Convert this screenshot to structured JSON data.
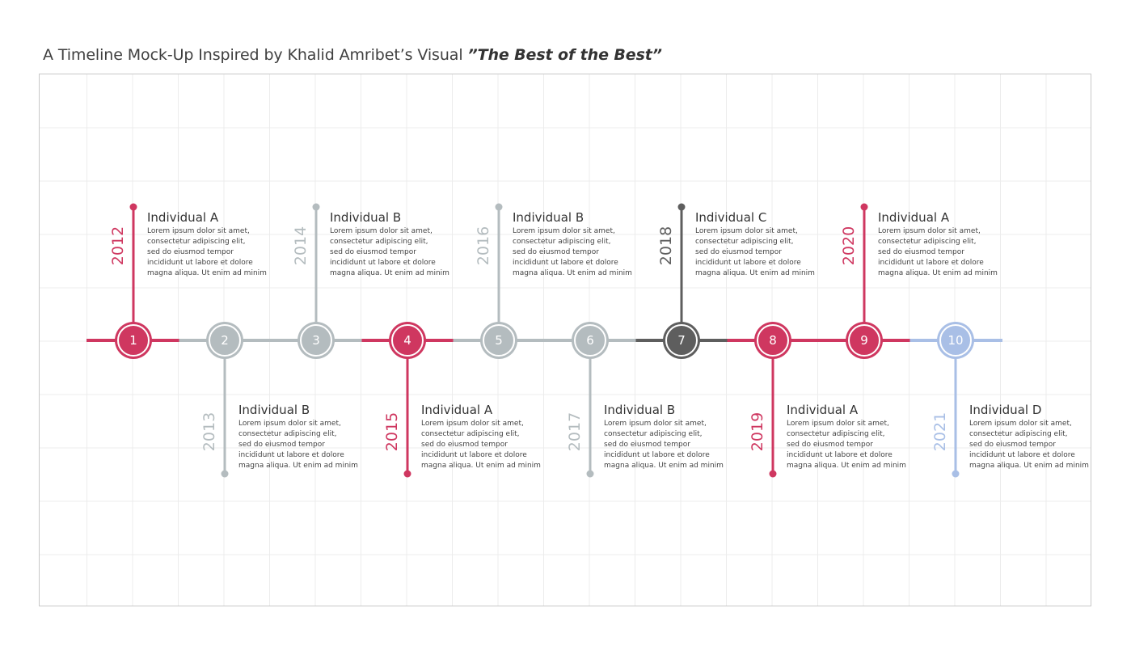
{
  "title": {
    "prefix": "A Timeline Mock-Up Inspired by Khalid Amribet’s Visual ",
    "emphasis": "”The Best of the Best”"
  },
  "colors": {
    "red": "#cf3760",
    "gray": "#b4bcbf",
    "dark": "#5e5e5e",
    "blue": "#a9bfe6",
    "grid": "#ececec"
  },
  "events": [
    {
      "num": "1",
      "year": "2012",
      "name": "Individual A",
      "color": "red",
      "side": "top",
      "desc": [
        "Lorem ipsum dolor sit amet,",
        "consectetur adipiscing elit,",
        "sed do eiusmod tempor",
        "incididunt ut labore et dolore",
        "magna aliqua. Ut enim ad minim"
      ]
    },
    {
      "num": "2",
      "year": "2013",
      "name": "Individual B",
      "color": "gray",
      "side": "bottom",
      "desc": [
        "Lorem ipsum dolor sit amet,",
        "consectetur adipiscing elit,",
        "sed do eiusmod tempor",
        "incididunt ut labore et dolore",
        "magna aliqua. Ut enim ad minim"
      ]
    },
    {
      "num": "3",
      "year": "2014",
      "name": "Individual B",
      "color": "gray",
      "side": "top",
      "desc": [
        "Lorem ipsum dolor sit amet,",
        "consectetur adipiscing elit,",
        "sed do eiusmod tempor",
        "incididunt ut labore et dolore",
        "magna aliqua. Ut enim ad minim"
      ]
    },
    {
      "num": "4",
      "year": "2015",
      "name": "Individual A",
      "color": "red",
      "side": "bottom",
      "desc": [
        "Lorem ipsum dolor sit amet,",
        "consectetur adipiscing elit,",
        "sed do eiusmod tempor",
        "incididunt ut labore et dolore",
        "magna aliqua. Ut enim ad minim"
      ]
    },
    {
      "num": "5",
      "year": "2016",
      "name": "Individual B",
      "color": "gray",
      "side": "top",
      "desc": [
        "Lorem ipsum dolor sit amet,",
        "consectetur adipiscing elit,",
        "sed do eiusmod tempor",
        "incididunt ut labore et dolore",
        "magna aliqua. Ut enim ad minim"
      ]
    },
    {
      "num": "6",
      "year": "2017",
      "name": "Individual B",
      "color": "gray",
      "side": "bottom",
      "desc": [
        "Lorem ipsum dolor sit amet,",
        "consectetur adipiscing elit,",
        "sed do eiusmod tempor",
        "incididunt ut labore et dolore",
        "magna aliqua. Ut enim ad minim"
      ]
    },
    {
      "num": "7",
      "year": "2018",
      "name": "Individual C",
      "color": "dark",
      "side": "top",
      "desc": [
        "Lorem ipsum dolor sit amet,",
        "consectetur adipiscing elit,",
        "sed do eiusmod tempor",
        "incididunt ut labore et dolore",
        "magna aliqua. Ut enim ad minim"
      ]
    },
    {
      "num": "8",
      "year": "2019",
      "name": "Individual A",
      "color": "red",
      "side": "bottom",
      "desc": [
        "Lorem ipsum dolor sit amet,",
        "consectetur adipiscing elit,",
        "sed do eiusmod tempor",
        "incididunt ut labore et dolore",
        "magna aliqua. Ut enim ad minim"
      ]
    },
    {
      "num": "9",
      "year": "2020",
      "name": "Individual A",
      "color": "red",
      "side": "top",
      "desc": [
        "Lorem ipsum dolor sit amet,",
        "consectetur adipiscing elit,",
        "sed do eiusmod tempor",
        "incididunt ut labore et dolore",
        "magna aliqua. Ut enim ad minim"
      ]
    },
    {
      "num": "10",
      "year": "2021",
      "name": "Individual D",
      "color": "blue",
      "side": "bottom",
      "desc": [
        "Lorem ipsum dolor sit amet,",
        "consectetur adipiscing elit,",
        "sed do eiusmod tempor",
        "incididunt ut labore et dolore",
        "magna aliqua. Ut enim ad minim"
      ]
    }
  ]
}
